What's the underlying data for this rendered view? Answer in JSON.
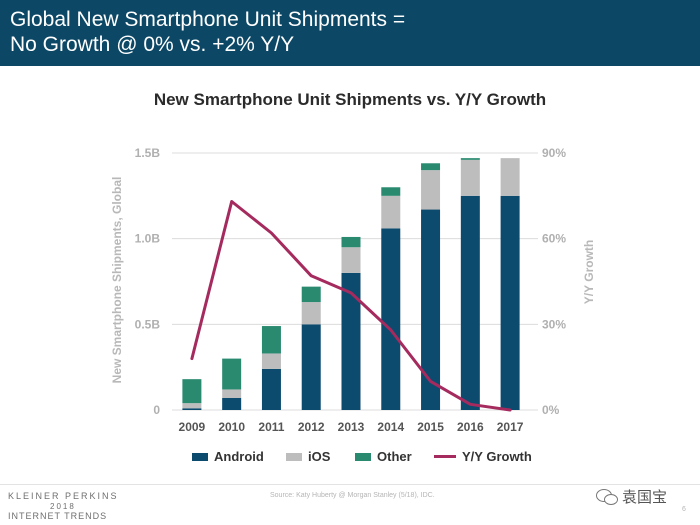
{
  "header": {
    "title_line1": "Global New Smartphone Unit Shipments =",
    "title_line2": "No Growth @ 0% vs. +2% Y/Y"
  },
  "chart_data": {
    "type": "bar",
    "stacked": true,
    "title": "New Smartphone Unit Shipments vs. Y/Y Growth",
    "ylabel": "New Smartphone Shipments, Global",
    "ylabel_right": "Y/Y Growth",
    "ylim": [
      0,
      1.5
    ],
    "ylim_right": [
      0,
      90
    ],
    "yticks": [
      {
        "value": 0,
        "label": "0"
      },
      {
        "value": 0.5,
        "label": "0.5B"
      },
      {
        "value": 1.0,
        "label": "1.0B"
      },
      {
        "value": 1.5,
        "label": "1.5B"
      }
    ],
    "yticks_right": [
      {
        "value": 0,
        "label": "0%"
      },
      {
        "value": 30,
        "label": "30%"
      },
      {
        "value": 60,
        "label": "60%"
      },
      {
        "value": 90,
        "label": "90%"
      }
    ],
    "categories": [
      "2009",
      "2010",
      "2011",
      "2012",
      "2013",
      "2014",
      "2015",
      "2016",
      "2017"
    ],
    "series": [
      {
        "name": "Android",
        "color": "#0c4a6e",
        "values": [
          0.01,
          0.07,
          0.24,
          0.5,
          0.8,
          1.06,
          1.17,
          1.25,
          1.25
        ]
      },
      {
        "name": "iOS",
        "color": "#bdbdbd",
        "values": [
          0.03,
          0.05,
          0.09,
          0.13,
          0.15,
          0.19,
          0.23,
          0.21,
          0.22
        ]
      },
      {
        "name": "Other",
        "color": "#2a8a70",
        "values": [
          0.14,
          0.18,
          0.16,
          0.09,
          0.06,
          0.05,
          0.04,
          0.01,
          0.0
        ]
      },
      {
        "name": "Y/Y Growth",
        "type": "line",
        "axis": "right",
        "color": "#a52a5e",
        "values": [
          18,
          73,
          62,
          47,
          41,
          28,
          10,
          2,
          0
        ]
      }
    ],
    "legend": "bottom"
  },
  "footer": {
    "brand_line1": "KLEINER PERKINS",
    "brand_line2": "2018",
    "brand_line3": "INTERNET TRENDS",
    "source": "Source: Katy Huberty @ Morgan Stanley (5/18), IDC.",
    "watermark": "袁国宝",
    "page": "6"
  },
  "icons": {
    "watermark_icon": "wechat-icon"
  }
}
